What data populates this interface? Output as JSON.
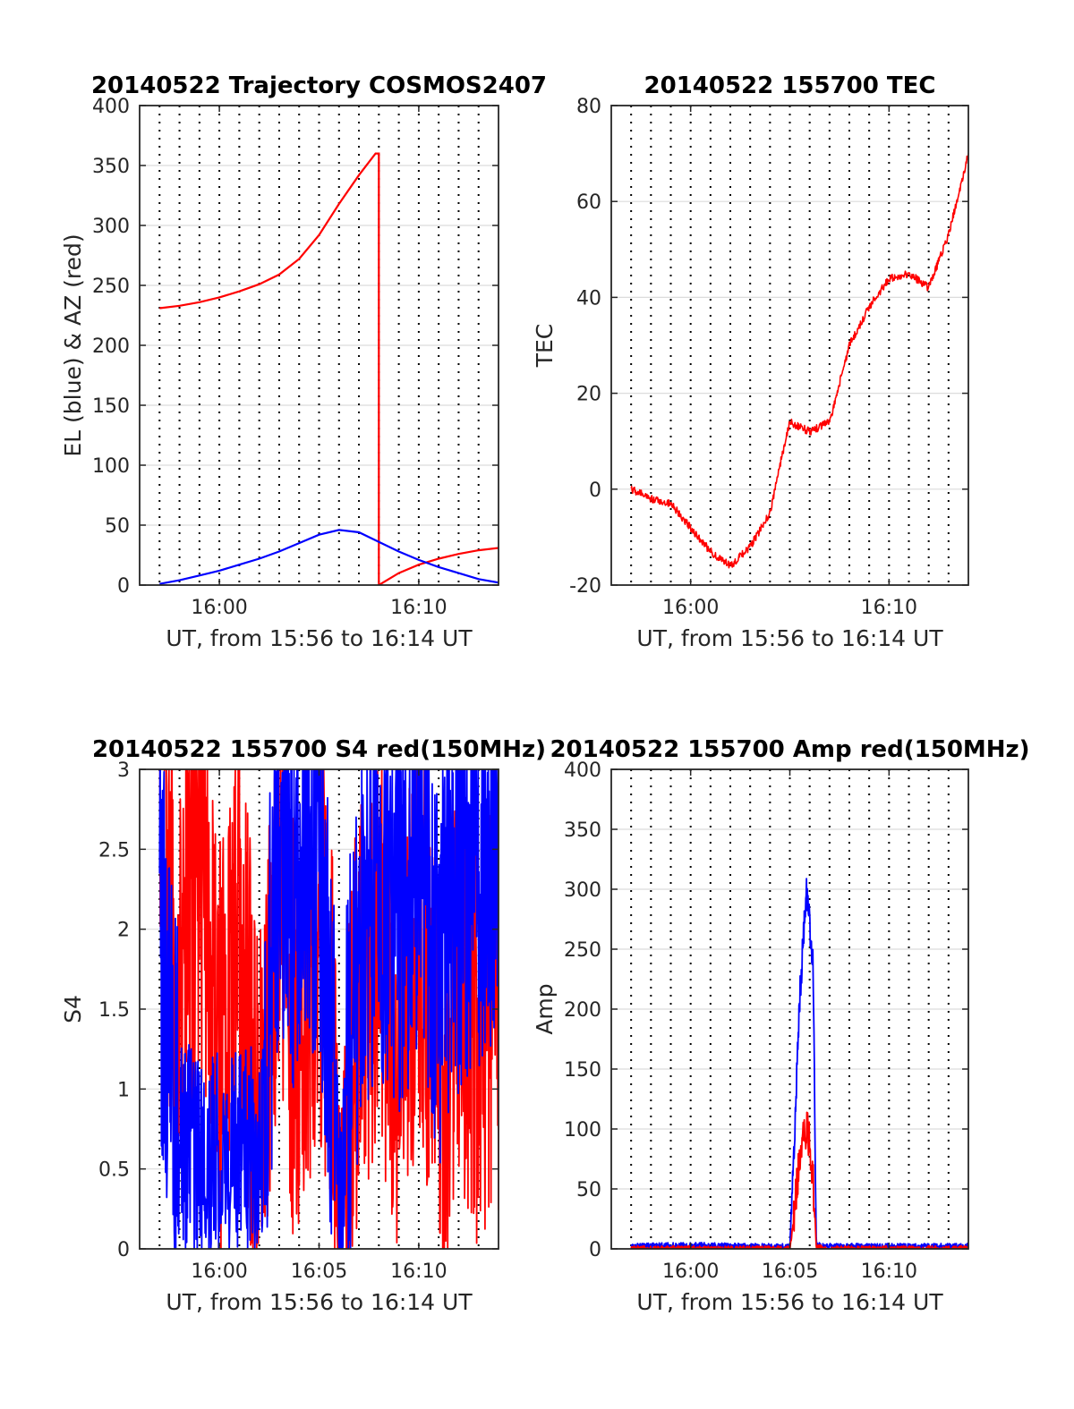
{
  "colors": {
    "az": "#ff0000",
    "el": "#0000ff",
    "grid": "#dcdcdc",
    "axis": "#262626"
  },
  "chart_data": [
    {
      "type": "line",
      "title": "20140522 Trajectory COSMOS2407",
      "xlabel": "UT, from 15:56 to 16:14 UT",
      "ylabel": "EL (blue) & AZ (red)",
      "xlim": [
        "15:56",
        "16:14"
      ],
      "xticks": [
        "16:00",
        "16:10"
      ],
      "ylim": [
        0,
        400
      ],
      "yticks": [
        "0",
        "50",
        "100",
        "150",
        "200",
        "250",
        "300",
        "350",
        "400"
      ],
      "grid": true,
      "series": [
        {
          "color": "red",
          "x": [
            "15:57",
            "15:58",
            "15:59",
            "16:00",
            "16:01",
            "16:02",
            "16:03",
            "16:04",
            "16:05",
            "16:06",
            "16:07",
            "16:07:50",
            "16:08",
            "16:09",
            "16:10",
            "16:11",
            "16:12",
            "16:13",
            "16:14"
          ],
          "y": [
            231,
            233,
            236,
            240,
            245,
            251,
            259,
            272,
            292,
            318,
            342,
            360,
            0,
            10,
            17,
            22,
            26,
            29,
            31
          ]
        },
        {
          "color": "blue",
          "x": [
            "15:57",
            "15:58",
            "15:59",
            "16:00",
            "16:01",
            "16:02",
            "16:03",
            "16:04",
            "16:05",
            "16:06",
            "16:07",
            "16:08",
            "16:09",
            "16:10",
            "16:11",
            "16:12",
            "16:13",
            "16:14"
          ],
          "y": [
            1,
            4,
            8,
            12,
            17,
            22,
            28,
            35,
            42,
            46,
            44,
            36,
            28,
            21,
            15,
            10,
            5,
            2
          ]
        }
      ]
    },
    {
      "type": "line",
      "title": "20140522 155700 TEC",
      "xlabel": "UT, from 15:56 to 16:14 UT",
      "ylabel": "TEC",
      "xlim": [
        "15:56",
        "16:14"
      ],
      "xticks": [
        "16:00",
        "16:10"
      ],
      "ylim": [
        -20,
        80
      ],
      "yticks": [
        "-20",
        "0",
        "20",
        "40",
        "60",
        "80"
      ],
      "grid": true,
      "series": [
        {
          "color": "red",
          "x": [
            "15:57",
            "15:58",
            "15:59",
            "16:00",
            "16:01",
            "16:02",
            "16:03",
            "16:04",
            "16:04:30",
            "16:05",
            "16:06",
            "16:07",
            "16:08",
            "16:09",
            "16:10",
            "16:11",
            "16:12",
            "16:13",
            "16:14"
          ],
          "y": [
            0,
            -2,
            -3,
            -8,
            -13,
            -16,
            -12,
            -5,
            5,
            14,
            12,
            14,
            30,
            38,
            44,
            45,
            42,
            53,
            70
          ]
        }
      ]
    },
    {
      "type": "line",
      "title": "20140522 155700 S4 red(150MHz)",
      "xlabel": "UT, from 15:56 to 16:14 UT",
      "ylabel": "S4",
      "xlim": [
        "15:56",
        "16:14"
      ],
      "xticks": [
        "16:00",
        "16:05",
        "16:10"
      ],
      "ylim": [
        0,
        3
      ],
      "yticks": [
        "0",
        "0.5",
        "1",
        "1.5",
        "2",
        "2.5",
        "3"
      ],
      "grid": true,
      "series": [
        {
          "color": "red",
          "x": [
            "15:57",
            "15:58",
            "15:59",
            "16:00",
            "16:01",
            "16:02",
            "16:03",
            "16:04",
            "16:05",
            "16:05:30",
            "16:06",
            "16:07",
            "16:08",
            "16:09",
            "16:10",
            "16:11",
            "16:12",
            "16:13",
            "16:14"
          ],
          "y": [
            2.8,
            1.5,
            2.5,
            1.2,
            2.0,
            0.8,
            2.2,
            1.0,
            2.0,
            1.6,
            0.4,
            1.5,
            1.8,
            1.2,
            2.0,
            1.0,
            1.6,
            1.3,
            1.5
          ]
        },
        {
          "color": "blue",
          "x": [
            "15:57",
            "15:58",
            "15:59",
            "16:00",
            "16:01",
            "16:02",
            "16:03",
            "16:04",
            "16:05",
            "16:05:30",
            "16:06",
            "16:07",
            "16:08",
            "16:09",
            "16:10",
            "16:11",
            "16:12",
            "16:13",
            "16:14"
          ],
          "y": [
            2.0,
            0.65,
            0.6,
            0.6,
            0.62,
            0.6,
            2.5,
            2.2,
            2.6,
            1.6,
            0.2,
            2.0,
            2.4,
            2.0,
            2.6,
            1.8,
            2.2,
            2.4,
            2.6
          ]
        }
      ]
    },
    {
      "type": "line",
      "title": "20140522 155700 Amp red(150MHz)",
      "xlabel": "UT, from 15:56 to 16:14 UT",
      "ylabel": "Amp",
      "xlim": [
        "15:56",
        "16:14"
      ],
      "xticks": [
        "16:00",
        "16:05",
        "16:10"
      ],
      "ylim": [
        0,
        400
      ],
      "yticks": [
        "0",
        "50",
        "100",
        "150",
        "200",
        "250",
        "300",
        "350",
        "400"
      ],
      "grid": true,
      "series": [
        {
          "color": "blue",
          "x": [
            "15:57",
            "16:00",
            "16:03",
            "16:05",
            "16:05:10",
            "16:05:30",
            "16:05:50",
            "16:06",
            "16:06:10",
            "16:06:20",
            "16:06:40",
            "16:08",
            "16:10",
            "16:14"
          ],
          "y": [
            2,
            3,
            2,
            2,
            60,
            210,
            300,
            270,
            240,
            5,
            2,
            2,
            2,
            2
          ]
        },
        {
          "color": "red",
          "x": [
            "15:57",
            "16:05",
            "16:05:10",
            "16:05:30",
            "16:05:50",
            "16:06",
            "16:06:10",
            "16:06:20",
            "16:06:40",
            "16:14"
          ],
          "y": [
            0,
            0,
            20,
            80,
            100,
            90,
            60,
            2,
            0,
            0
          ]
        }
      ]
    }
  ]
}
